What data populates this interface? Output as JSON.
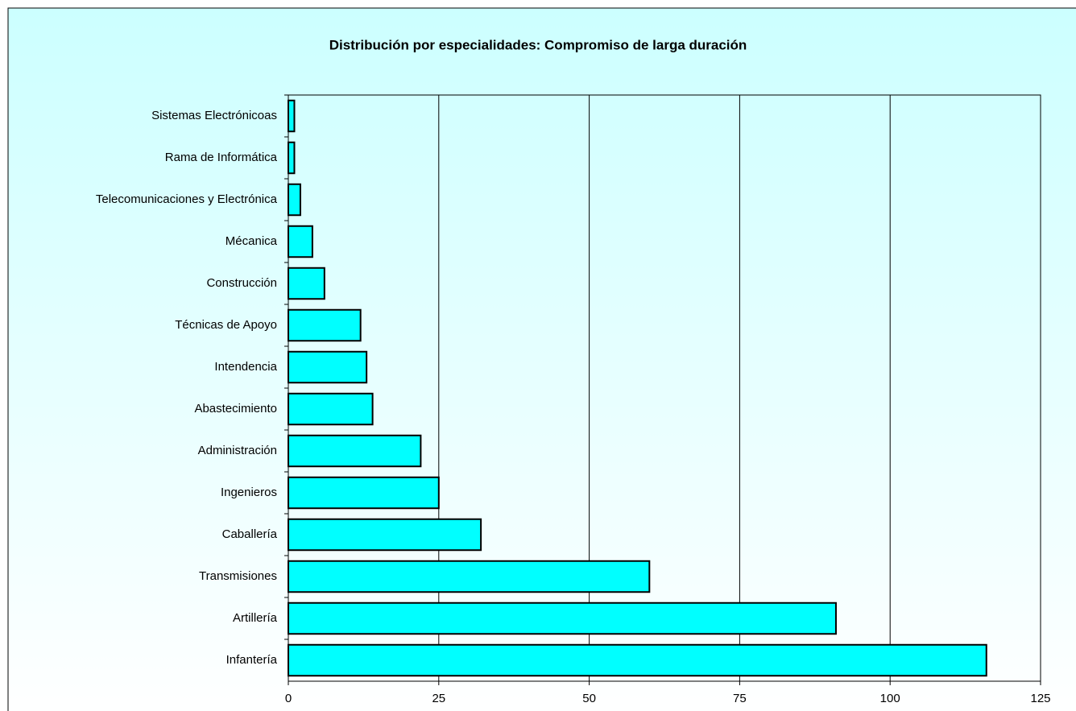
{
  "chart_data": {
    "type": "barh",
    "title": "Distribución por especialidades: Compromiso de larga duración",
    "categories": [
      "Sistemas Electrónicoas",
      "Rama de Informática",
      "Telecomunicaciones y Electrónica",
      "Mécanica",
      "Construcción",
      "Técnicas de Apoyo",
      "Intendencia",
      "Abastecimiento",
      "Administración",
      "Ingenieros",
      "Caballería",
      "Transmisiones",
      "Artillería",
      "Infantería"
    ],
    "values": [
      1,
      1,
      2,
      4,
      6,
      12,
      13,
      14,
      22,
      25,
      32,
      60,
      91,
      116
    ],
    "color": "#00ffff",
    "xlim": [
      0,
      125
    ],
    "xticks": [
      0,
      25,
      50,
      75,
      100,
      125
    ],
    "grid": true
  }
}
